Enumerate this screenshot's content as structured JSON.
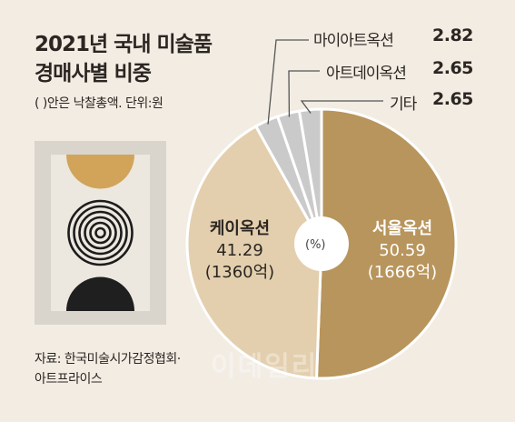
{
  "title_line1": "2021년 국내 미술품",
  "title_line2": "경매사별 비중",
  "subtitle": "(  )안은 낙찰총액. 단위:원",
  "source_line1": "자료: 한국미술시가감정협회·",
  "source_line2": "아트프라이스",
  "watermark": "이데일리",
  "chart_data": {
    "type": "pie",
    "center_label": "(%)",
    "slices": [
      {
        "name": "서울옥션",
        "value": 50.59,
        "value_label": "50.59",
        "amount": "(1666억)",
        "color": "#b8955c"
      },
      {
        "name": "케이옥션",
        "value": 41.29,
        "value_label": "41.29",
        "amount": "(1360억)",
        "color": "#e3cfae"
      },
      {
        "name": "마이아트옥션",
        "value": 2.82,
        "value_label": "2.82",
        "color": "#cacaca"
      },
      {
        "name": "아트데이옥션",
        "value": 2.65,
        "value_label": "2.65",
        "color": "#cacaca"
      },
      {
        "name": "기타",
        "value": 2.65,
        "value_label": "2.65",
        "color": "#cacaca"
      }
    ]
  }
}
